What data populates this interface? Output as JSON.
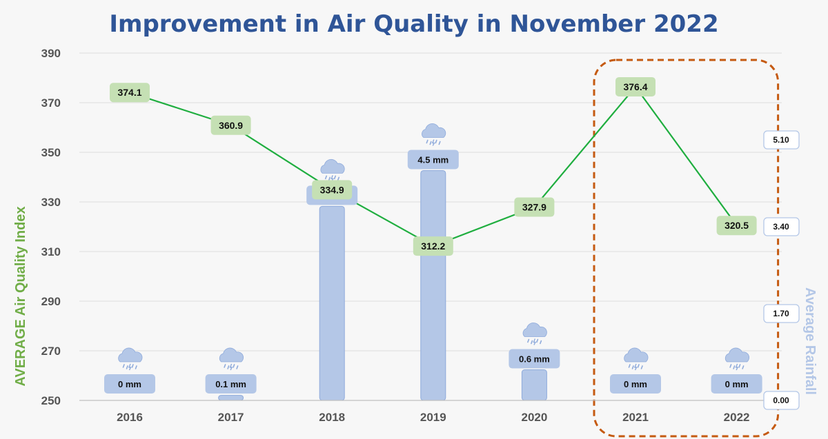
{
  "chart_data": {
    "type": "line",
    "title": "Improvement in Air Quality in November 2022",
    "categories": [
      "2016",
      "2017",
      "2018",
      "2019",
      "2020",
      "2021",
      "2022"
    ],
    "series": [
      {
        "values": [
          374.1,
          360.9,
          334.9,
          312.2,
          327.9,
          376.4,
          320.5
        ]
      }
    ],
    "rainfall": {
      "type": "bar",
      "values": [
        0,
        0.1,
        3.8,
        4.5,
        0.6,
        0,
        0
      ],
      "labels": [
        "0 mm",
        "0.1 mm",
        "3.8 mm",
        "4.5 mm",
        "0.6 mm",
        "0 mm",
        "0 mm"
      ],
      "icon": "rain-cloud-icon"
    },
    "ylabel": "AVERAGE Air Quality Index",
    "y2label": "Average Rainfall",
    "ylim": [
      250,
      390
    ],
    "yticks": [
      "390",
      "370",
      "350",
      "330",
      "310",
      "290",
      "270",
      "250"
    ],
    "y2lim": [
      0,
      6.8
    ],
    "y2ticks": [
      "5.10",
      "3.40",
      "1.70",
      "0.00"
    ],
    "highlight": {
      "categories": [
        "2021",
        "2022"
      ],
      "color": "#c55a11"
    },
    "grid": true,
    "colors": {
      "line": "#1fae3f",
      "line_label_bg": "#c5e0b4",
      "bar": "#b4c7e7",
      "rain_label_bg": "#b4c7e7",
      "title": "#2f5597"
    }
  }
}
